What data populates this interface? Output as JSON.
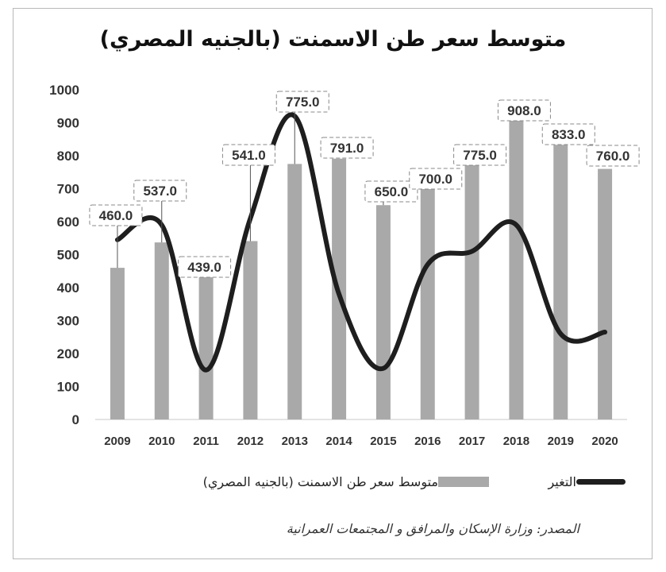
{
  "chart_data": {
    "type": "bar",
    "title": "متوسط سعر طن الاسمنت (بالجنيه المصري)",
    "categories": [
      "2009",
      "2010",
      "2011",
      "2012",
      "2013",
      "2014",
      "2015",
      "2016",
      "2017",
      "2018",
      "2019",
      "2020"
    ],
    "series": [
      {
        "name": "متوسط سعر طن الاسمنت (بالجنيه المصري)",
        "type": "bar",
        "values": [
          460,
          537,
          439,
          541,
          775,
          791,
          650,
          700,
          775,
          908,
          833,
          760
        ],
        "labels": [
          "460.0",
          "537.0",
          "439.0",
          "541.0",
          "775.0",
          "791.0",
          "650.0",
          "700.0",
          "775.0",
          "908.0",
          "833.0",
          "760.0"
        ],
        "color": "#a9a9a9"
      },
      {
        "name": "التغير",
        "type": "line",
        "values": [
          545,
          590,
          150,
          610,
          920,
          380,
          155,
          470,
          510,
          590,
          260,
          265
        ],
        "color": "#1e1e1e"
      }
    ],
    "yticks": [
      "0",
      "100",
      "200",
      "300",
      "400",
      "500",
      "600",
      "700",
      "800",
      "900",
      "1000"
    ],
    "ylim": [
      0,
      1000
    ],
    "grid": false,
    "legend": "bottom"
  },
  "source": "المصدر: وزارة الإسكان والمرافق و المجتمعات العمرانية"
}
